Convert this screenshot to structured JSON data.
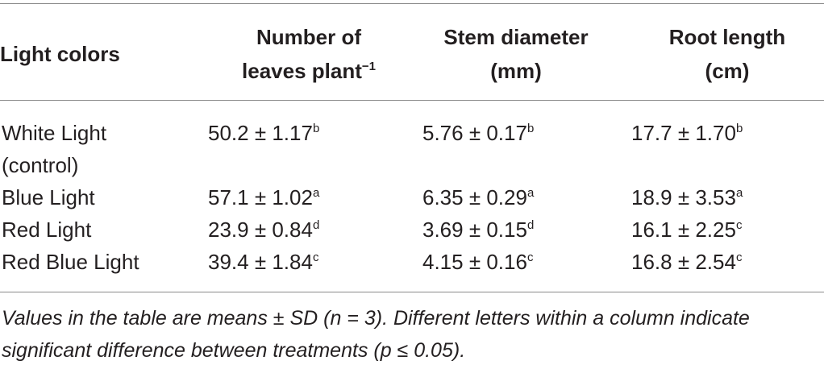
{
  "table": {
    "header": [
      {
        "lines": [
          "Light colors"
        ]
      },
      {
        "lines": [
          "Number of",
          "leaves plant"
        ],
        "sup": "−1"
      },
      {
        "lines": [
          "Stem diameter",
          "(mm)"
        ]
      },
      {
        "lines": [
          "Root length",
          "(cm)"
        ]
      }
    ],
    "rows": [
      {
        "label": "White Light (control)",
        "cells": [
          {
            "text": "50.2 ± 1.17",
            "sup": "b"
          },
          {
            "text": "5.76 ± 0.17",
            "sup": "b"
          },
          {
            "text": "17.7 ± 1.70",
            "sup": "b"
          }
        ]
      },
      {
        "label": "Blue Light",
        "cells": [
          {
            "text": "57.1 ± 1.02",
            "sup": "a"
          },
          {
            "text": "6.35 ± 0.29",
            "sup": "a"
          },
          {
            "text": "18.9 ± 3.53",
            "sup": "a"
          }
        ]
      },
      {
        "label": "Red Light",
        "cells": [
          {
            "text": "23.9 ± 0.84",
            "sup": "d"
          },
          {
            "text": "3.69 ± 0.15",
            "sup": "d"
          },
          {
            "text": "16.1 ± 2.25",
            "sup": "c"
          }
        ]
      },
      {
        "label": "Red Blue Light",
        "cells": [
          {
            "text": "39.4 ± 1.84",
            "sup": "c"
          },
          {
            "text": "4.15 ± 0.16",
            "sup": "c"
          },
          {
            "text": "16.8 ± 2.54",
            "sup": "c"
          }
        ]
      }
    ],
    "footnote": "Values in the table are means ± SD (n = 3). Different letters within a column indicate significant difference between treatments (p ≤ 0.05)."
  }
}
